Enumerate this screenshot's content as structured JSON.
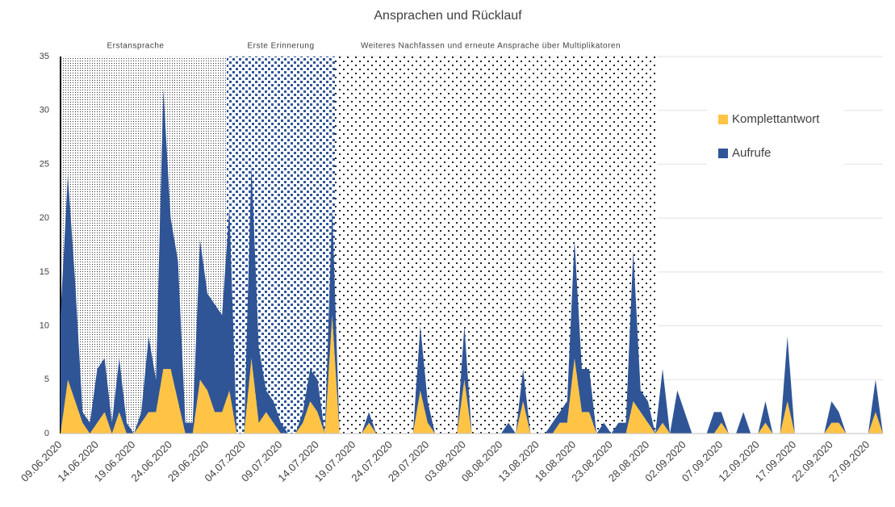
{
  "chart_data": {
    "type": "stacked_area",
    "title": "Ansprachen und Rücklauf",
    "phases": [
      "Erstansprache",
      "Erste Erinnerung",
      "Weiteres Nachfassen und erneute Ansprache über Multiplikatoren"
    ],
    "categories": [
      "09.06.2020",
      null,
      null,
      null,
      null,
      "14.06.2020",
      null,
      null,
      null,
      null,
      "19.06.2020",
      null,
      null,
      null,
      null,
      "24.06.2020",
      null,
      null,
      null,
      null,
      "29.06.2020",
      null,
      null,
      null,
      null,
      "04.07.2020",
      null,
      null,
      null,
      null,
      "09.07.2020",
      null,
      null,
      null,
      null,
      "14.07.2020",
      null,
      null,
      null,
      null,
      "19.07.2020",
      null,
      null,
      null,
      null,
      "24.07.2020",
      null,
      null,
      null,
      null,
      "29.07.2020",
      null,
      null,
      null,
      null,
      "03.08.2020",
      null,
      null,
      null,
      null,
      "08.08.2020",
      null,
      null,
      null,
      null,
      "13.08.2020",
      null,
      null,
      null,
      null,
      "18.08.2020",
      null,
      null,
      null,
      null,
      "23.08.2020",
      null,
      null,
      null,
      null,
      "28.08.2020",
      null,
      null,
      null,
      null,
      "02.09.2020",
      null,
      null,
      null,
      null,
      "07.09.2020",
      null,
      null,
      null,
      null,
      "12.09.2020",
      null,
      null,
      null,
      null,
      "17.09.2020",
      null,
      null,
      null,
      null,
      "22.09.2020",
      null,
      null,
      null,
      null,
      "27.09.2020",
      null,
      null
    ],
    "series": [
      {
        "name": "Komplettantwort",
        "color": "#FFC445",
        "values": [
          0,
          5,
          3,
          1,
          0,
          1,
          2,
          0,
          2,
          0,
          0,
          1,
          2,
          2,
          6,
          6,
          3,
          0,
          0,
          5,
          4,
          2,
          2,
          4,
          0,
          0,
          7,
          1,
          2,
          1,
          0,
          0,
          0,
          1,
          3,
          2,
          0,
          11,
          0,
          0,
          0,
          0,
          1,
          0,
          0,
          0,
          0,
          0,
          0,
          4,
          1,
          0,
          0,
          0,
          0,
          5,
          0,
          0,
          0,
          0,
          0,
          0,
          0,
          3,
          0,
          0,
          0,
          0,
          1,
          1,
          7,
          2,
          2,
          0,
          0,
          0,
          0,
          0,
          3,
          2,
          1,
          0,
          1,
          0,
          0,
          0,
          0,
          0,
          0,
          0,
          1,
          0,
          0,
          0,
          0,
          0,
          1,
          0,
          0,
          3,
          0,
          0,
          0,
          0,
          0,
          1,
          1,
          0,
          0,
          0,
          0,
          2,
          0
        ]
      },
      {
        "name": "Aufrufe",
        "color": "#2F5597",
        "values": [
          11,
          19,
          11,
          1,
          1,
          5,
          5,
          1,
          5,
          1,
          0,
          1,
          7,
          3,
          26,
          14,
          13,
          1,
          1,
          13,
          9,
          10,
          9,
          17,
          0,
          0,
          18,
          7,
          2,
          2,
          1,
          0,
          0,
          1,
          3,
          3,
          0,
          10,
          0,
          0,
          0,
          0,
          1,
          0,
          0,
          0,
          0,
          0,
          0,
          6,
          2,
          0,
          0,
          0,
          0,
          5,
          0,
          0,
          0,
          0,
          0,
          1,
          0,
          3,
          0,
          0,
          0,
          1,
          1,
          2,
          11,
          4,
          4,
          0,
          1,
          0,
          1,
          1,
          14,
          2,
          2,
          0,
          5,
          0,
          4,
          2,
          0,
          0,
          0,
          2,
          1,
          0,
          0,
          2,
          0,
          0,
          2,
          0,
          0,
          6,
          0,
          0,
          0,
          0,
          0,
          2,
          1,
          0,
          0,
          0,
          0,
          3,
          0
        ]
      }
    ],
    "ylim": [
      0,
      35
    ],
    "yticks": [
      0,
      5,
      10,
      15,
      20,
      25,
      30,
      35
    ],
    "grid": true,
    "legend": "right"
  }
}
